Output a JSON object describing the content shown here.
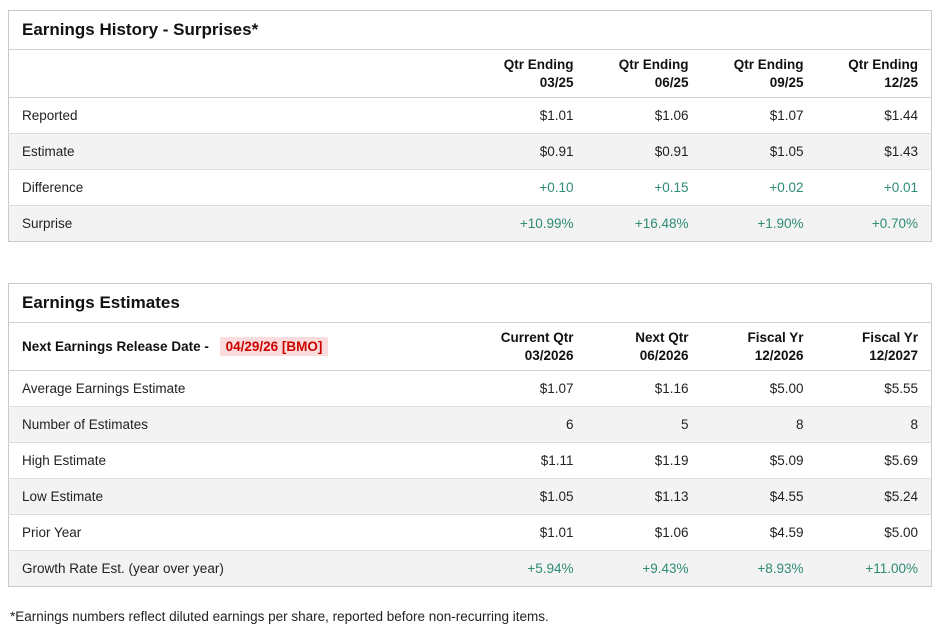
{
  "colors": {
    "positive_green": "#2e8b76",
    "release_red": "#cc0000",
    "release_highlight_bg": "#fbdcdc",
    "row_alt_bg": "#f3f3f3",
    "border_gray": "#cfcfcf"
  },
  "surprises": {
    "title": "Earnings History - Surprises*",
    "columns": [
      {
        "line1": "Qtr Ending",
        "line2": "03/25"
      },
      {
        "line1": "Qtr Ending",
        "line2": "06/25"
      },
      {
        "line1": "Qtr Ending",
        "line2": "09/25"
      },
      {
        "line1": "Qtr Ending",
        "line2": "12/25"
      }
    ],
    "rows": [
      {
        "label": "Reported",
        "values": [
          "$1.01",
          "$1.06",
          "$1.07",
          "$1.44"
        ],
        "positive": false
      },
      {
        "label": "Estimate",
        "values": [
          "$0.91",
          "$0.91",
          "$1.05",
          "$1.43"
        ],
        "positive": false
      },
      {
        "label": "Difference",
        "values": [
          "+0.10",
          "+0.15",
          "+0.02",
          "+0.01"
        ],
        "positive": true
      },
      {
        "label": "Surprise",
        "values": [
          "+10.99%",
          "+16.48%",
          "+1.90%",
          "+0.70%"
        ],
        "positive": true
      }
    ]
  },
  "estimates": {
    "title": "Earnings Estimates",
    "release_label": "Next Earnings Release Date -",
    "release_date": "04/29/26 [BMO]",
    "columns": [
      {
        "line1": "Current Qtr",
        "line2": "03/2026"
      },
      {
        "line1": "Next Qtr",
        "line2": "06/2026"
      },
      {
        "line1": "Fiscal Yr",
        "line2": "12/2026"
      },
      {
        "line1": "Fiscal Yr",
        "line2": "12/2027"
      }
    ],
    "rows": [
      {
        "label": "Average Earnings Estimate",
        "values": [
          "$1.07",
          "$1.16",
          "$5.00",
          "$5.55"
        ],
        "positive": false
      },
      {
        "label": "Number of Estimates",
        "values": [
          "6",
          "5",
          "8",
          "8"
        ],
        "positive": false
      },
      {
        "label": "High Estimate",
        "values": [
          "$1.11",
          "$1.19",
          "$5.09",
          "$5.69"
        ],
        "positive": false
      },
      {
        "label": "Low Estimate",
        "values": [
          "$1.05",
          "$1.13",
          "$4.55",
          "$5.24"
        ],
        "positive": false
      },
      {
        "label": "Prior Year",
        "values": [
          "$1.01",
          "$1.06",
          "$4.59",
          "$5.00"
        ],
        "positive": false
      },
      {
        "label": "Growth Rate Est. (year over year)",
        "values": [
          "+5.94%",
          "+9.43%",
          "+8.93%",
          "+11.00%"
        ],
        "positive": true
      }
    ]
  },
  "footnote": "*Earnings numbers reflect diluted earnings per share, reported before non-recurring items."
}
